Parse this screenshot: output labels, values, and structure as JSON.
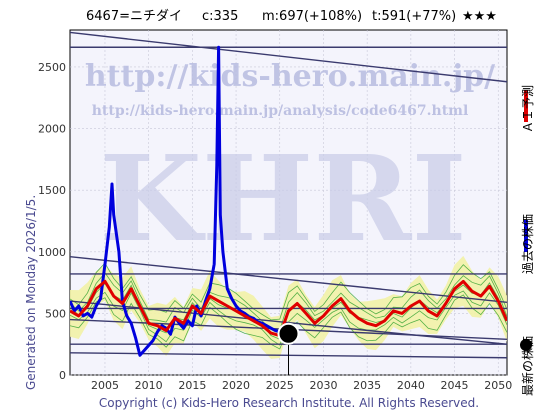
{
  "header": {
    "code": "6467=ニチダイ",
    "current": "c:335",
    "median": "m:697(+108%)",
    "target": "t:591(+77%)",
    "stars": "★★★"
  },
  "watermark": {
    "url_large": "http://kids-hero.main.jp/",
    "url_small": "http://kids-hero.main.jp/analysis/code6467.html",
    "logo": "KHRI"
  },
  "generated_text": "Generated on Monday 2026/1/5.",
  "copyright": "Copyright (c) Kids-Hero Research Institute. All Rights Reserved.",
  "legend": {
    "ai_forecast": "ＡＩ予測",
    "past_price": "過去の株価",
    "latest_price": "最新の株価"
  },
  "colors": {
    "ai_forecast": "#e00000",
    "past_price": "#0000dd",
    "latest_marker": "#000000",
    "trend_lines": "#3a3a6e",
    "band_fill": "#f2f2a6",
    "band_lines": "#2ea02e",
    "plot_bg": "#f4f4fc",
    "grid": "#c8c8d8"
  },
  "chart_data": {
    "type": "line",
    "xlim": [
      2001,
      2051
    ],
    "ylim": [
      0,
      2800
    ],
    "x_ticks": [
      "2005",
      "2010",
      "2015",
      "2020",
      "2025",
      "2030",
      "2035",
      "2040",
      "2045",
      "2050"
    ],
    "y_ticks": [
      "0",
      "500",
      "1000",
      "1500",
      "2000",
      "2500"
    ],
    "latest_point": {
      "x": 2026.0,
      "y": 335
    },
    "series": [
      {
        "key": "past",
        "x": [
          2001,
          2001.5,
          2002,
          2002.5,
          2003,
          2003.5,
          2004,
          2004.5,
          2005,
          2005.5,
          2005.8,
          2006,
          2006.3,
          2006.6,
          2007,
          2007.5,
          2008,
          2008.5,
          2009,
          2009.5,
          2010,
          2010.5,
          2011,
          2011.5,
          2012,
          2012.5,
          2013,
          2013.5,
          2014,
          2014.5,
          2015,
          2015.5,
          2016,
          2016.5,
          2017,
          2017.5,
          2017.8,
          2018,
          2018.2,
          2018.5,
          2019,
          2019.5,
          2020,
          2020.5,
          2021,
          2021.5,
          2022,
          2022.5,
          2023,
          2023.5,
          2024,
          2024.5,
          2025,
          2025.5,
          2026
        ],
        "y": [
          600,
          520,
          560,
          480,
          500,
          470,
          560,
          620,
          900,
          1200,
          1550,
          1300,
          1150,
          1000,
          600,
          480,
          420,
          300,
          160,
          200,
          240,
          280,
          350,
          400,
          380,
          330,
          470,
          420,
          380,
          440,
          400,
          560,
          480,
          600,
          700,
          900,
          1700,
          2660,
          1300,
          1000,
          700,
          620,
          560,
          520,
          500,
          470,
          460,
          430,
          420,
          400,
          380,
          360,
          350,
          340,
          335
        ]
      },
      {
        "key": "forecast",
        "x": [
          2001,
          2002,
          2003,
          2004,
          2005,
          2006,
          2007,
          2008,
          2009,
          2010,
          2011,
          2012,
          2013,
          2014,
          2015,
          2016,
          2017,
          2018,
          2019,
          2020,
          2021,
          2022,
          2023,
          2024,
          2025,
          2026,
          2027,
          2028,
          2029,
          2030,
          2031,
          2032,
          2033,
          2034,
          2035,
          2036,
          2037,
          2038,
          2039,
          2040,
          2041,
          2042,
          2043,
          2044,
          2045,
          2046,
          2047,
          2048,
          2049,
          2050,
          2051
        ],
        "y": [
          520,
          480,
          560,
          700,
          760,
          640,
          580,
          700,
          560,
          420,
          400,
          360,
          460,
          420,
          560,
          500,
          640,
          600,
          560,
          520,
          480,
          440,
          400,
          340,
          320,
          520,
          580,
          500,
          420,
          480,
          560,
          620,
          520,
          460,
          420,
          400,
          440,
          520,
          500,
          560,
          600,
          520,
          480,
          580,
          700,
          760,
          680,
          640,
          720,
          600,
          440
        ]
      }
    ]
  }
}
